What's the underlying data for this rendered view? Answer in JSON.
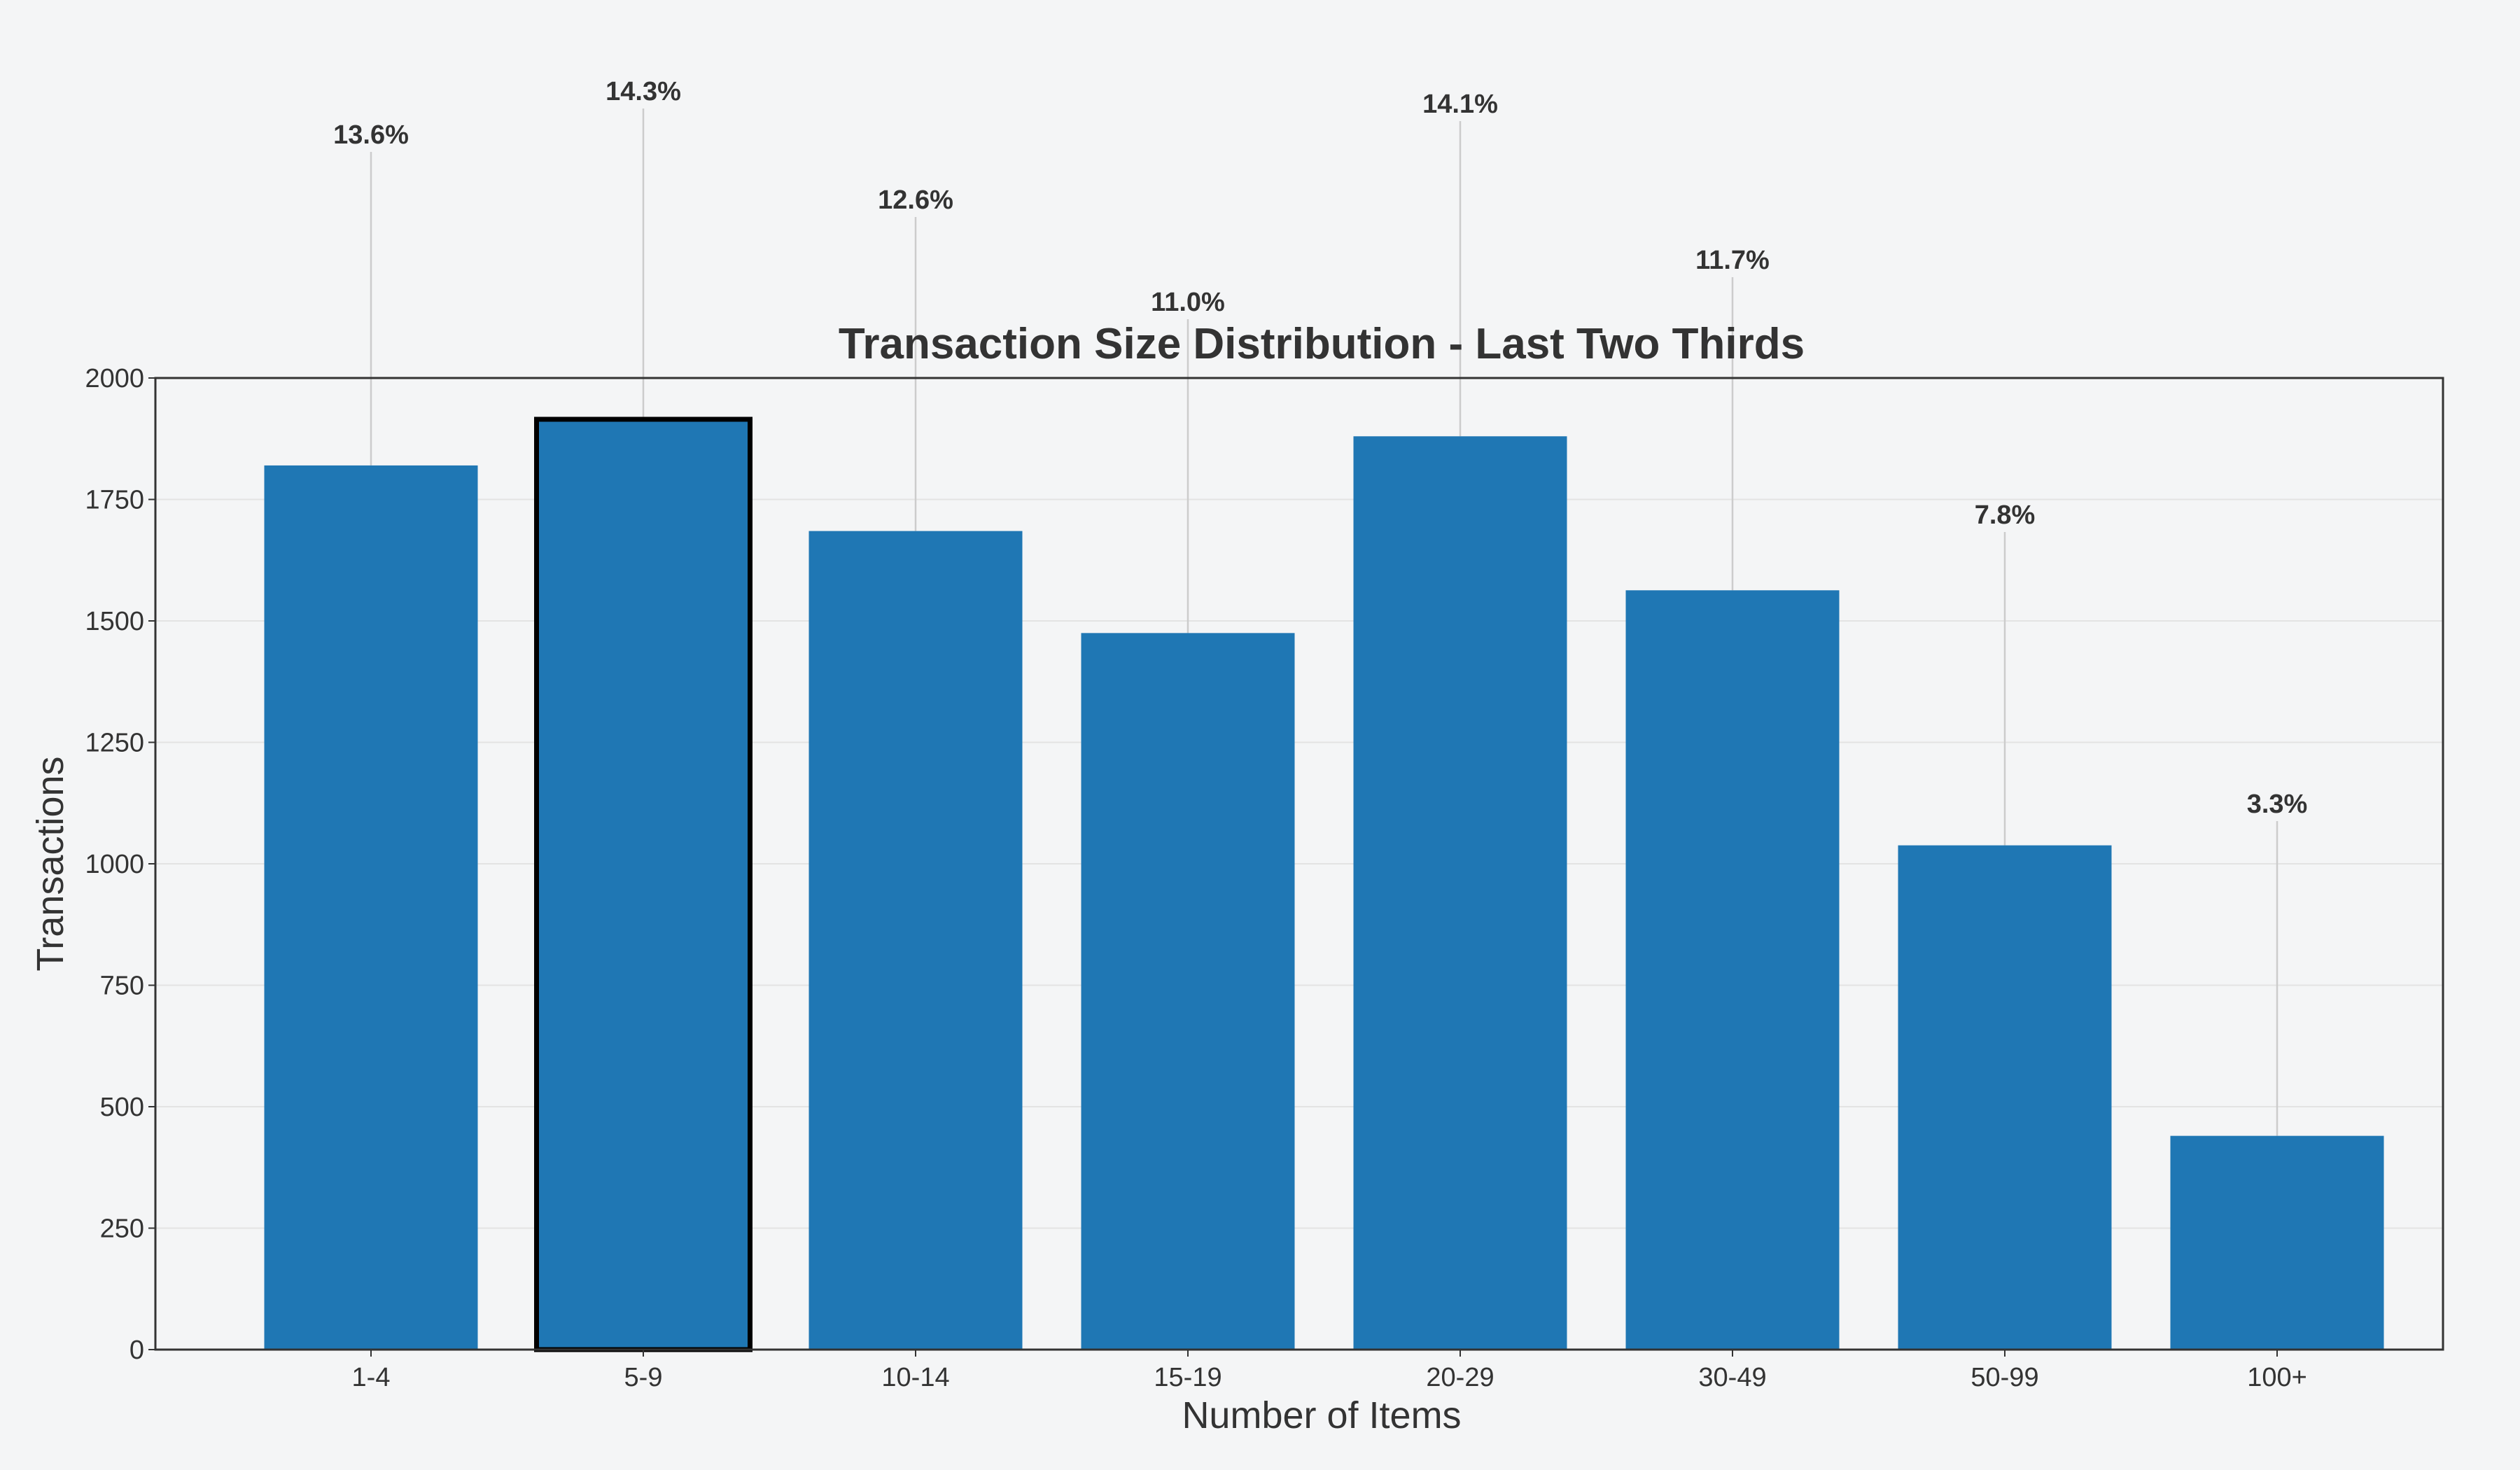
{
  "chart_data": {
    "type": "bar",
    "title": "Transaction Size Distribution - Last Two Thirds",
    "xlabel": "Number of Items",
    "ylabel": "Transactions",
    "categories": [
      "1-4",
      "5-9",
      "10-14",
      "15-19",
      "20-29",
      "30-49",
      "50-99",
      "100+"
    ],
    "values": [
      1820,
      1915,
      1685,
      1475,
      1880,
      1563,
      1038,
      440
    ],
    "percent_labels": [
      "13.6%",
      "14.3%",
      "12.6%",
      "11.0%",
      "14.1%",
      "11.7%",
      "7.8%",
      "3.3%"
    ],
    "y_ticks": [
      0,
      250,
      500,
      750,
      1000,
      1250,
      1500,
      1750,
      2000
    ],
    "ylim": [
      0,
      2000
    ],
    "highlighted_category": "5-9",
    "grid": true,
    "colors": {
      "bar": "#1f77b4",
      "highlight_edge": "#000000",
      "background": "#f4f5f6",
      "grid": "#e3e3e3",
      "connector": "#cccccc",
      "text": "#333333"
    }
  }
}
